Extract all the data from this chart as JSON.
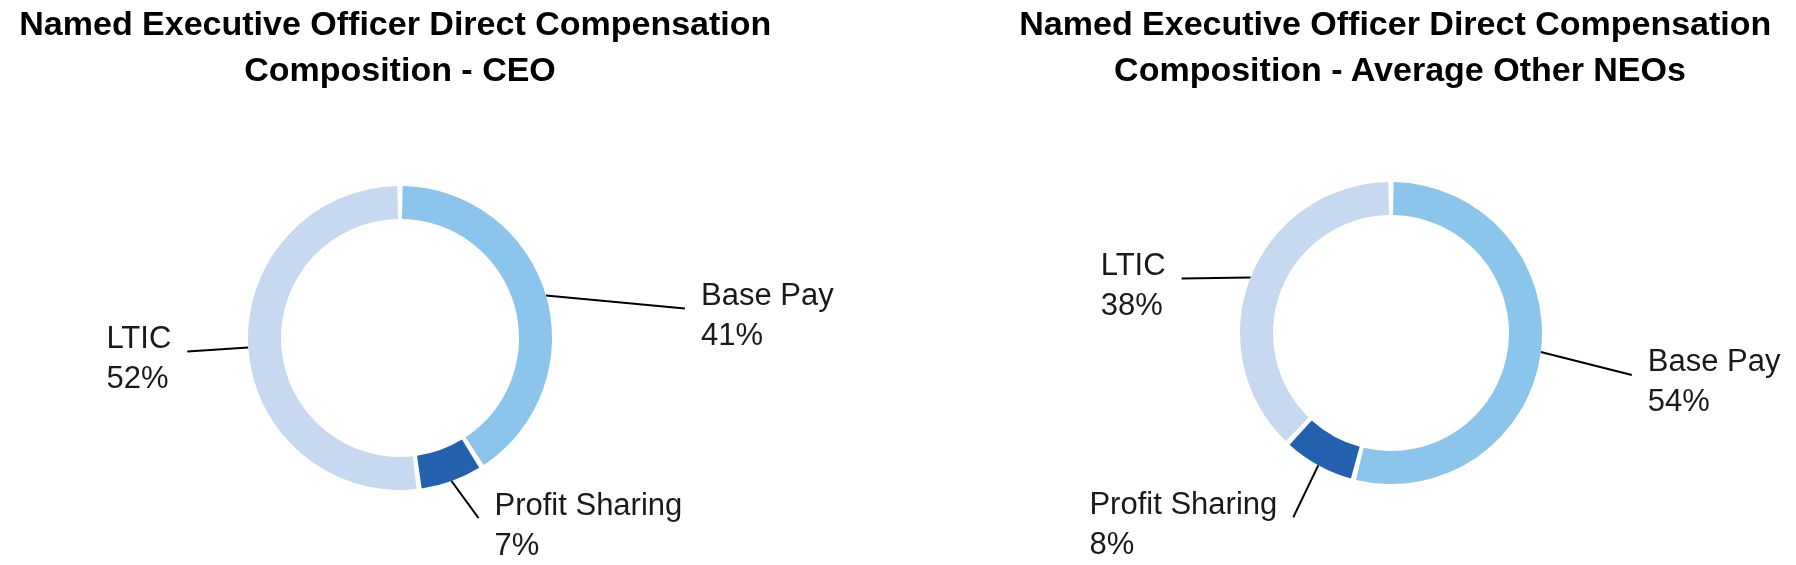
{
  "chart_data": [
    {
      "type": "donut",
      "title": "Named Executive Officer Direct Compensation Composition - CEO",
      "categories": [
        "Base Pay",
        "Profit Sharing",
        "LTIC"
      ],
      "values": [
        41,
        7,
        52
      ],
      "value_labels": [
        "41%",
        "7%",
        "52%"
      ],
      "colors": [
        "#8cc5eb",
        "#2360ad",
        "#c7d9f1"
      ]
    },
    {
      "type": "donut",
      "title": "Named Executive Officer Direct Compensation Composition - Average Other NEOs",
      "categories": [
        "Base Pay",
        "Profit Sharing",
        "LTIC"
      ],
      "values": [
        54,
        8,
        38
      ],
      "value_labels": [
        "54%",
        "8%",
        "38%"
      ],
      "colors": [
        "#8cc5eb",
        "#2360ad",
        "#c7d9f1"
      ]
    }
  ]
}
